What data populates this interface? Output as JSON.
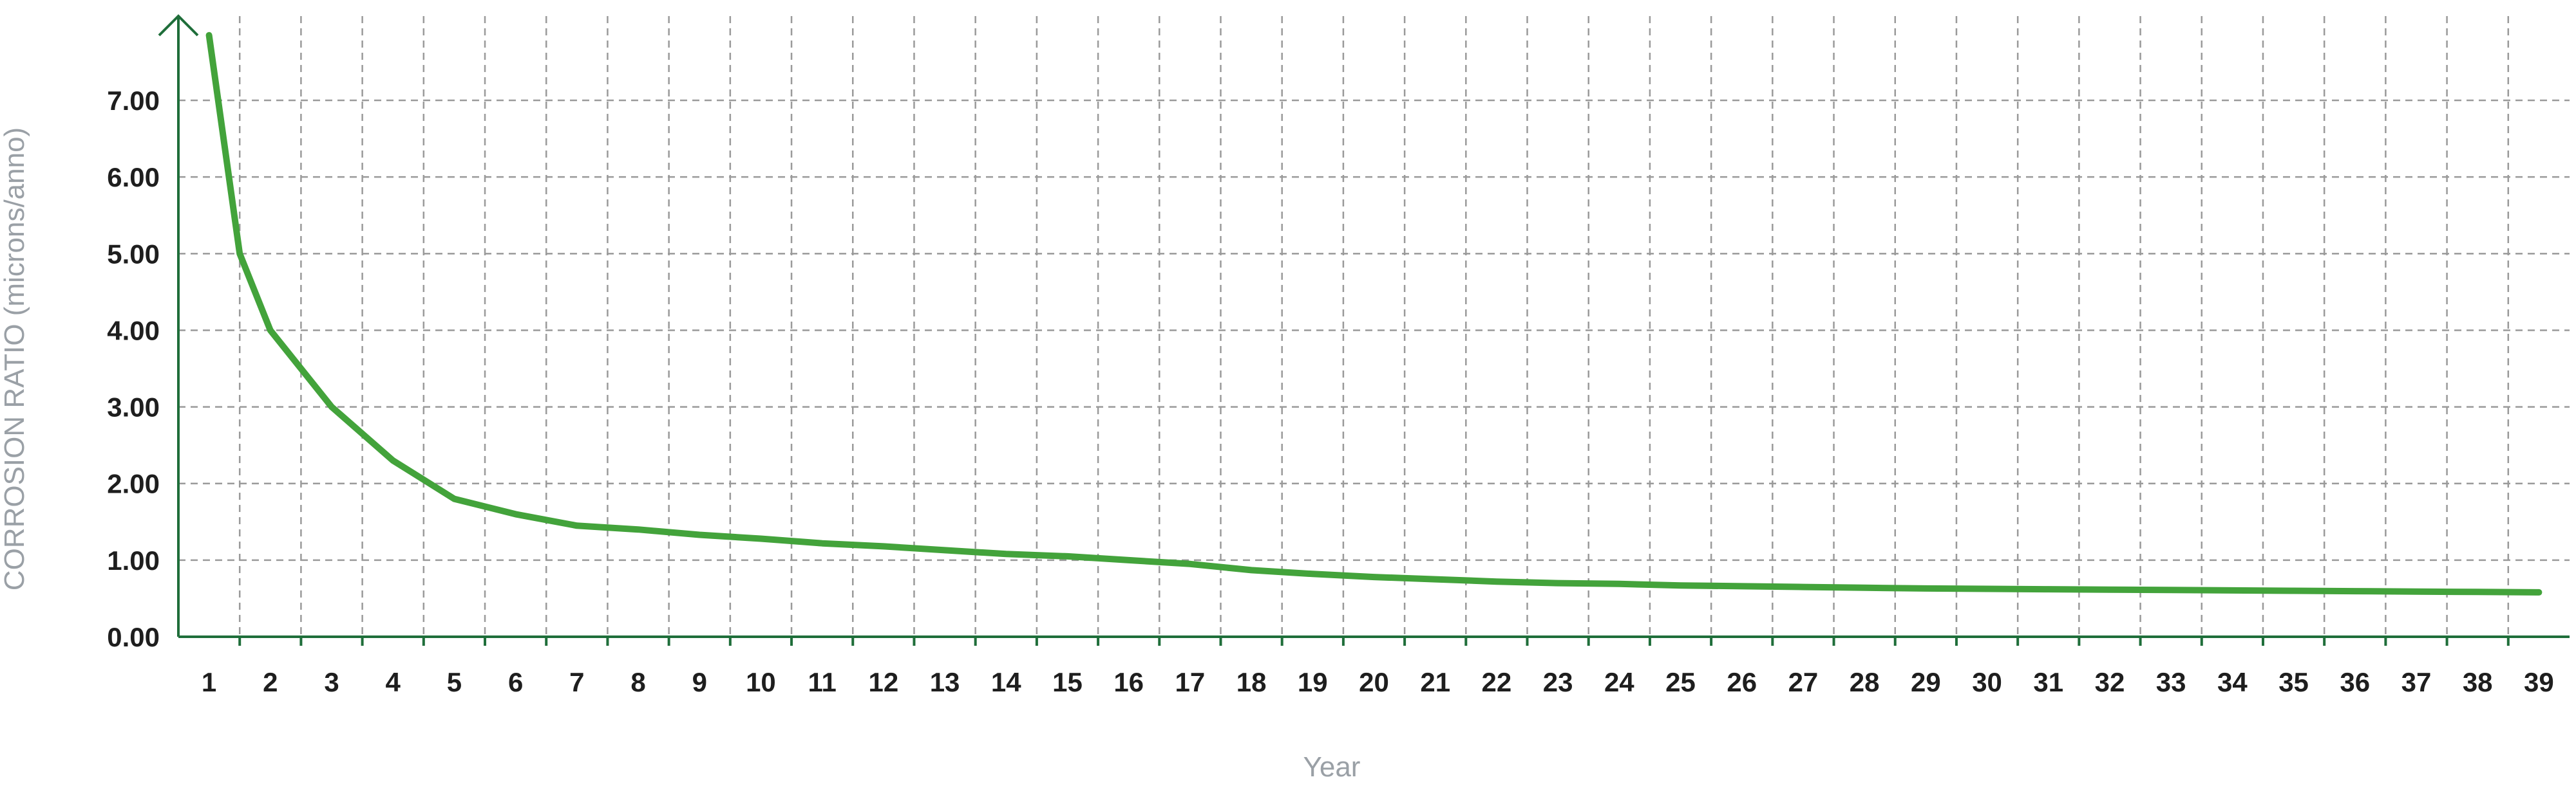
{
  "chart_data": {
    "type": "line",
    "title": "",
    "xlabel": "Year",
    "ylabel": "CORROSION RATIO (microns/anno)",
    "x": [
      1,
      2,
      3,
      4,
      5,
      6,
      7,
      8,
      9,
      10,
      11,
      12,
      13,
      14,
      15,
      16,
      17,
      18,
      19,
      20,
      21,
      22,
      23,
      24,
      25,
      26,
      27,
      28,
      29,
      30,
      31,
      32,
      33,
      34,
      35,
      36,
      37,
      38,
      39
    ],
    "xlim": [
      0.5,
      39.5
    ],
    "ylim": [
      0,
      8.1
    ],
    "yticks": [
      "0.00",
      "1.00",
      "2.00",
      "3.00",
      "4.00",
      "5.00",
      "6.00",
      "7.00"
    ],
    "grid": true,
    "legend": "none",
    "series": [
      {
        "color": "#43a33b",
        "x": [
          1,
          1.5,
          2,
          3,
          4,
          5,
          6,
          7,
          8,
          9,
          10,
          11,
          12,
          13,
          14,
          15,
          16,
          17,
          18,
          19,
          20,
          21,
          22,
          23,
          24,
          25,
          26,
          27,
          28,
          29,
          30,
          31,
          32,
          33,
          34,
          35,
          36,
          37,
          38,
          39
        ],
        "values": [
          7.85,
          5.0,
          4.0,
          3.0,
          2.3,
          1.8,
          1.6,
          1.45,
          1.4,
          1.33,
          1.28,
          1.22,
          1.18,
          1.13,
          1.08,
          1.05,
          1.0,
          0.95,
          0.87,
          0.82,
          0.78,
          0.75,
          0.72,
          0.7,
          0.69,
          0.67,
          0.66,
          0.65,
          0.64,
          0.63,
          0.625,
          0.62,
          0.615,
          0.61,
          0.605,
          0.6,
          0.595,
          0.59,
          0.585,
          0.58
        ]
      }
    ]
  }
}
